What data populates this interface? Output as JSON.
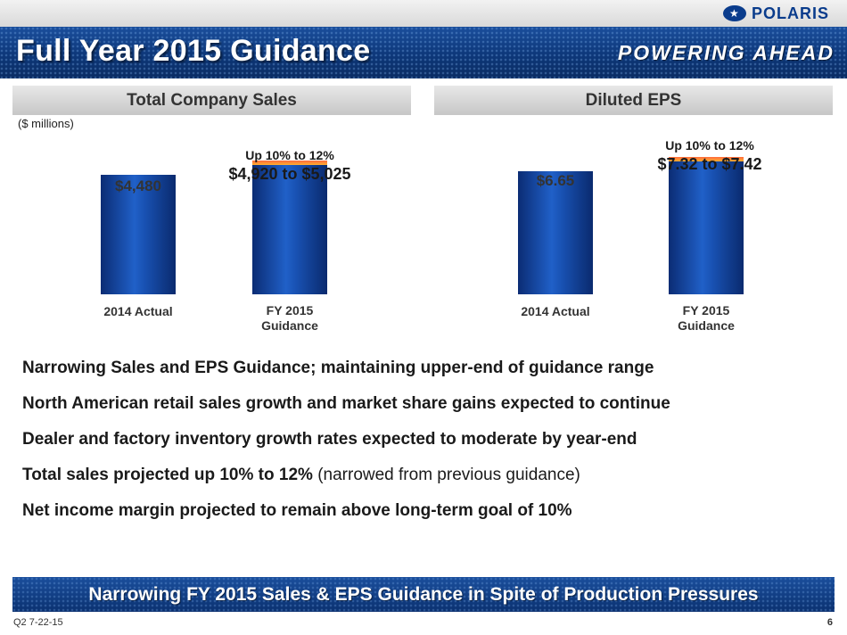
{
  "header": {
    "brand": "POLARIS",
    "title": "Full Year 2015 Guidance",
    "tagline": "POWERING AHEAD"
  },
  "sales_panel": {
    "heading": "Total Company Sales",
    "units": "($ millions)",
    "actual_value_label": "$4,480",
    "guidance_up_label": "Up 10% to 12%",
    "guidance_range_label": "$4,920 to $5,025",
    "category_actual": "2014 Actual",
    "category_guidance_line1": "FY 2015",
    "category_guidance_line2": "Guidance"
  },
  "eps_panel": {
    "heading": "Diluted EPS",
    "actual_value_label": "$6.65",
    "guidance_up_label": "Up 10% to 12%",
    "guidance_range_label": "$7.32 to $7.42",
    "category_actual": "2014 Actual",
    "category_guidance_line1": "FY 2015",
    "category_guidance_line2": "Guidance"
  },
  "chart_data": [
    {
      "type": "bar",
      "title": "Total Company Sales",
      "ylabel": "($ millions)",
      "categories": [
        "2014 Actual",
        "FY 2015 Guidance"
      ],
      "values": [
        4480,
        4920
      ],
      "guidance_range": [
        4920,
        5025
      ],
      "ylim": [
        0,
        5500
      ]
    },
    {
      "type": "bar",
      "title": "Diluted EPS",
      "categories": [
        "2014 Actual",
        "FY 2015 Guidance"
      ],
      "values": [
        6.65,
        7.32
      ],
      "guidance_range": [
        7.32,
        7.42
      ],
      "ylim": [
        0,
        8.2
      ]
    }
  ],
  "bullets": [
    {
      "bold": "Narrowing Sales and EPS Guidance; maintaining upper-end of guidance range",
      "normal": ""
    },
    {
      "bold": "North American retail sales growth and market share gains expected to continue",
      "normal": ""
    },
    {
      "bold": "Dealer and factory inventory growth rates expected to moderate by year-end",
      "normal": ""
    },
    {
      "bold": "Total sales projected up 10% to 12%",
      "normal": "(narrowed from previous guidance)"
    },
    {
      "bold": "Net income margin projected to remain above long-term goal of 10%",
      "normal": ""
    }
  ],
  "banner": "Narrowing FY 2015 Sales & EPS Guidance in Spite of Production Pressures",
  "footer": {
    "left": "Q2 7-22-15",
    "page": "6"
  },
  "colors": {
    "title_bar": "#0d3779",
    "bar_blue": "#1850b0",
    "guidance_cap": "#ff8c30"
  }
}
